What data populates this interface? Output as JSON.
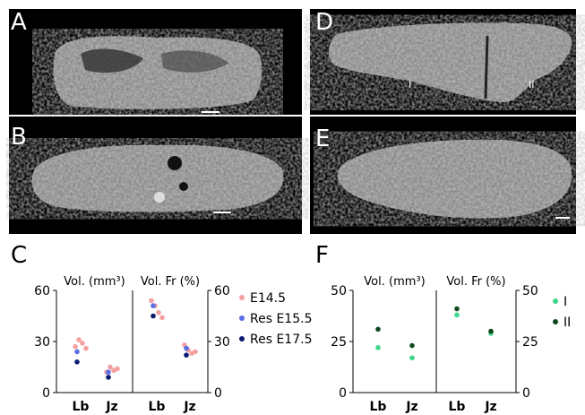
{
  "figure": {
    "panels": {
      "A": "A",
      "B": "B",
      "C": "C",
      "D": "D",
      "E": "E",
      "F": "F"
    },
    "region_markers": {
      "I": "I",
      "II": "II"
    }
  },
  "chart_data": [
    {
      "panel": "C",
      "type": "scatter",
      "left_title": "Vol. (mm³)",
      "right_title": "Vol. Fr (%)",
      "categories": [
        "Lb",
        "Jz"
      ],
      "left_axis": {
        "ylim": [
          0,
          60
        ],
        "ticks": [
          "0",
          "30",
          "60"
        ]
      },
      "right_axis": {
        "ylim": [
          0,
          60
        ],
        "ticks": [
          "0",
          "30",
          "60"
        ]
      },
      "legend": [
        "E14.5",
        "Res E15.5",
        "Res E17.5"
      ],
      "colors": {
        "E14.5": "#f5a0a0",
        "Res E15.5": "#5a6ee6",
        "Res E17.5": "#0a1a70"
      },
      "series": [
        {
          "name": "E14.5",
          "volume": {
            "Lb": [
              27,
              31,
              29,
              26
            ],
            "Jz": [
              12,
              15,
              13,
              14
            ]
          },
          "fraction": {
            "Lb": [
              54,
              51,
              47,
              44
            ],
            "Jz": [
              28,
              25,
              23,
              24
            ]
          }
        },
        {
          "name": "Res E15.5",
          "volume": {
            "Lb": [
              24
            ],
            "Jz": [
              12
            ]
          },
          "fraction": {
            "Lb": [
              51
            ],
            "Jz": [
              26
            ]
          }
        },
        {
          "name": "Res E17.5",
          "volume": {
            "Lb": [
              18
            ],
            "Jz": [
              9
            ]
          },
          "fraction": {
            "Lb": [
              45
            ],
            "Jz": [
              22
            ]
          }
        }
      ]
    },
    {
      "panel": "F",
      "type": "scatter",
      "left_title": "Vol. (mm³)",
      "right_title": "Vol. Fr (%)",
      "categories": [
        "Lb",
        "Jz"
      ],
      "left_axis": {
        "ylim": [
          0,
          50
        ],
        "ticks": [
          "0",
          "25",
          "50"
        ]
      },
      "right_axis": {
        "ylim": [
          0,
          50
        ],
        "ticks": [
          "0",
          "25",
          "50"
        ]
      },
      "legend": [
        "I",
        "II"
      ],
      "colors": {
        "I": "#3ed68a",
        "II": "#0e4a1e"
      },
      "series": [
        {
          "name": "I",
          "volume": {
            "Lb": [
              22
            ],
            "Jz": [
              17
            ]
          },
          "fraction": {
            "Lb": [
              38
            ],
            "Jz": [
              29
            ]
          }
        },
        {
          "name": "II",
          "volume": {
            "Lb": [
              31
            ],
            "Jz": [
              23
            ]
          },
          "fraction": {
            "Lb": [
              41
            ],
            "Jz": [
              30
            ]
          }
        }
      ]
    }
  ]
}
